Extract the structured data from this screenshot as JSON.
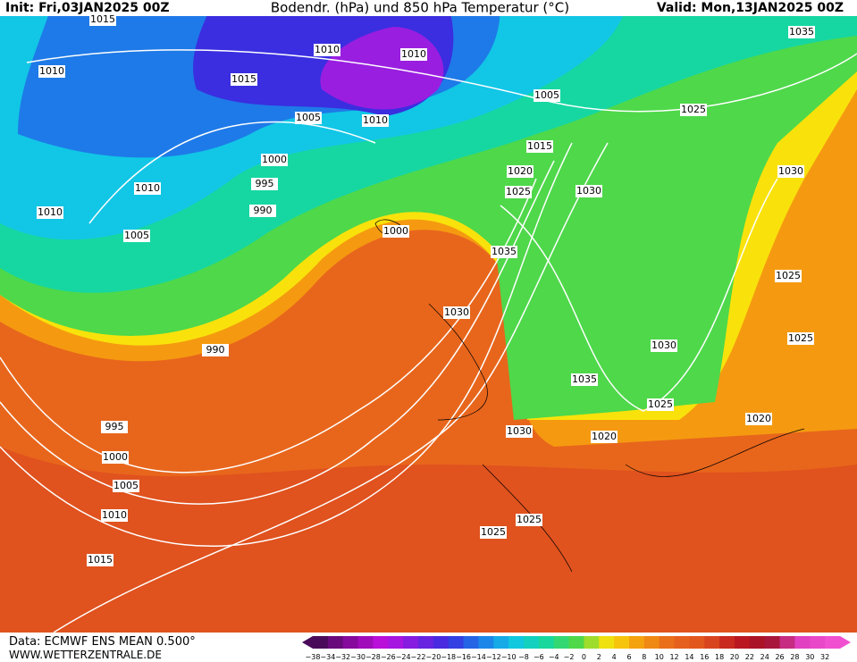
{
  "header": {
    "init": "Init: Fri,03JAN2025 00Z",
    "title": "Bodendr. (hPa) und 850 hPa Temperatur (°C)",
    "valid": "Valid: Mon,13JAN2025 00Z"
  },
  "isobar_labels": [
    "1015",
    "1010",
    "1015",
    "1010",
    "1010",
    "1005",
    "1010",
    "1005",
    "1025",
    "1035",
    "1000",
    "995",
    "1010",
    "1010",
    "990",
    "1005",
    "1000",
    "1015",
    "1020",
    "1025",
    "1030",
    "1030",
    "1035",
    "1025",
    "1030",
    "1025",
    "990",
    "1030",
    "1035",
    "1025",
    "1020",
    "995",
    "1030",
    "1020",
    "1000",
    "1005",
    "1010",
    "1025",
    "1025",
    "1015"
  ],
  "footer": {
    "source": "Data: ECMWF ENS MEAN 0.500°",
    "url": "WWW.WETTERZENTRALE.DE"
  },
  "colorbar": {
    "labels": [
      "−38",
      "−34",
      "−32",
      "−30",
      "−28",
      "−26",
      "−24",
      "−22",
      "−20",
      "−18",
      "−16",
      "−14",
      "−12",
      "−10",
      "−8",
      "−6",
      "−4",
      "−2",
      "0",
      "2",
      "4",
      "6",
      "8",
      "10",
      "12",
      "14",
      "16",
      "18",
      "20",
      "22",
      "24",
      "26",
      "28",
      "30",
      "32"
    ]
  }
}
